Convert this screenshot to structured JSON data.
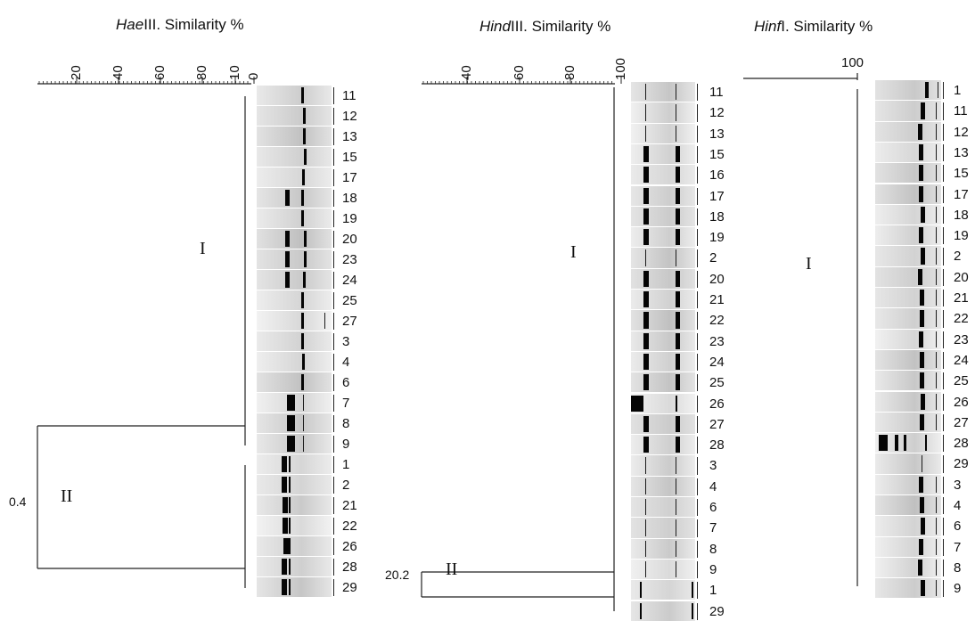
{
  "panels": [
    {
      "id": "haeiii",
      "title_enzyme": "Hae",
      "title_suffix": "III. Similarity %",
      "ticks": [
        "20",
        "40",
        "60",
        "80",
        "10",
        "0"
      ],
      "clusters": [
        {
          "label": "I"
        },
        {
          "label": "II"
        }
      ],
      "node_value": "0.4",
      "lanes": [
        "11",
        "12",
        "13",
        "15",
        "17",
        "18",
        "19",
        "20",
        "23",
        "24",
        "25",
        "27",
        "3",
        "4",
        "6",
        "7",
        "8",
        "9",
        "1",
        "2",
        "21",
        "22",
        "26",
        "28",
        "29"
      ]
    },
    {
      "id": "hindiii",
      "title_enzyme": "Hind",
      "title_suffix": "III. Similarity %",
      "ticks": [
        "40",
        "60",
        "80",
        "100"
      ],
      "clusters": [
        {
          "label": "I"
        },
        {
          "label": "II"
        }
      ],
      "node_value": "20.2",
      "lanes": [
        "11",
        "12",
        "13",
        "15",
        "16",
        "17",
        "18",
        "19",
        "2",
        "20",
        "21",
        "22",
        "23",
        "24",
        "25",
        "26",
        "27",
        "28",
        "3",
        "4",
        "6",
        "7",
        "8",
        "9",
        "1",
        "29"
      ]
    },
    {
      "id": "hinfi",
      "title_enzyme": "Hinf",
      "title_suffix": "I. Similarity %",
      "ticks": [
        "100"
      ],
      "clusters": [
        {
          "label": "I"
        }
      ],
      "lanes": [
        "1",
        "11",
        "12",
        "13",
        "15",
        "17",
        "18",
        "19",
        "2",
        "20",
        "21",
        "22",
        "23",
        "24",
        "25",
        "26",
        "27",
        "28",
        "29",
        "3",
        "4",
        "6",
        "7",
        "8",
        "9"
      ]
    }
  ]
}
